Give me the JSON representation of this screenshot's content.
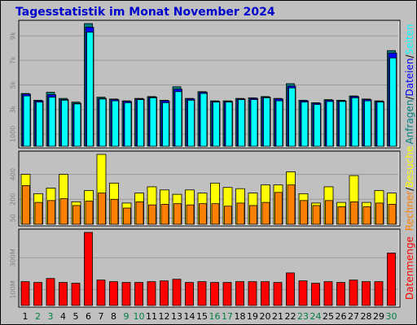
{
  "title": "Tagesstatistik im Monat November 2024",
  "colors": {
    "background": "#c0c0c0",
    "plot": "#c0c0c0",
    "grid": "#9a9a9a",
    "weekday": "#000000",
    "weekend": "#008040",
    "anfragen": "#008080",
    "dateien": "#0000ff",
    "seiten": "#00ffff",
    "besuche": "#ffff00",
    "rechner": "#ff8000",
    "datenmenge": "#ff0000",
    "title": "#0000cc"
  },
  "chart_data": [
    {
      "type": "bar",
      "ylabel_parts": [
        {
          "text": "Anfragen",
          "color_key": "anfragen"
        },
        {
          "text": "/",
          "color_key": "weekday"
        },
        {
          "text": "Dateien",
          "color_key": "dateien"
        },
        {
          "text": "/",
          "color_key": "weekday"
        },
        {
          "text": "Seiten",
          "color_key": "seiten"
        }
      ],
      "yticks": [
        "1000",
        "3k",
        "5k",
        "7k",
        "9k"
      ],
      "ytick_values": [
        1000,
        3000,
        5000,
        7000,
        9000
      ],
      "ylim": [
        0,
        10000
      ],
      "series": [
        {
          "name": "Anfragen",
          "color_key": "anfragen",
          "values": [
            4300,
            3750,
            4400,
            3900,
            3600,
            10000,
            4000,
            3850,
            3700,
            3900,
            4050,
            3750,
            4850,
            3900,
            4450,
            3700,
            3700,
            3900,
            3950,
            4050,
            3900,
            5100,
            3750,
            3550,
            3800,
            3750,
            4100,
            3850,
            3700,
            7800
          ]
        },
        {
          "name": "Dateien",
          "color_key": "dateien",
          "values": [
            4250,
            3700,
            4200,
            3800,
            3500,
            9700,
            3900,
            3800,
            3650,
            3850,
            4000,
            3700,
            4650,
            3850,
            4400,
            3650,
            3650,
            3850,
            3900,
            4000,
            3850,
            4900,
            3700,
            3500,
            3750,
            3700,
            4050,
            3800,
            3650,
            7600
          ]
        },
        {
          "name": "Seiten",
          "color_key": "seiten",
          "values": [
            4100,
            3600,
            4000,
            3750,
            3450,
            9300,
            3850,
            3700,
            3550,
            3800,
            3950,
            3550,
            4450,
            3750,
            4300,
            3600,
            3600,
            3800,
            3800,
            3950,
            3700,
            4750,
            3600,
            3400,
            3650,
            3650,
            3950,
            3700,
            3600,
            7200
          ]
        }
      ]
    },
    {
      "type": "bar",
      "ylabel_parts": [
        {
          "text": "Rechner",
          "color_key": "rechner"
        },
        {
          "text": "/",
          "color_key": "weekday"
        },
        {
          "text": "Besuche",
          "color_key": "besuche"
        }
      ],
      "yticks": [
        "50",
        "200",
        "400"
      ],
      "ytick_values": [
        50,
        200,
        400
      ],
      "ylim": [
        0,
        560
      ],
      "series": [
        {
          "name": "Besuche",
          "color_key": "besuche",
          "values": [
            400,
            245,
            290,
            400,
            180,
            270,
            560,
            330,
            170,
            250,
            300,
            275,
            240,
            275,
            250,
            330,
            295,
            285,
            250,
            315,
            315,
            420,
            245,
            170,
            300,
            175,
            390,
            175,
            270,
            250
          ]
        },
        {
          "name": "Rechner",
          "color_key": "rechner",
          "values": [
            310,
            175,
            190,
            205,
            150,
            185,
            250,
            200,
            130,
            180,
            155,
            160,
            165,
            155,
            165,
            165,
            145,
            170,
            150,
            175,
            255,
            315,
            190,
            150,
            190,
            140,
            180,
            140,
            170,
            160
          ]
        }
      ]
    },
    {
      "type": "bar",
      "ylabel_parts": [
        {
          "text": "Datenmenge",
          "color_key": "datenmenge"
        }
      ],
      "yticks": [
        "100M",
        "300M"
      ],
      "ytick_values": [
        100,
        300
      ],
      "ylim": [
        0,
        460
      ],
      "series": [
        {
          "name": "Datenmenge",
          "color_key": "datenmenge",
          "values": [
            150,
            145,
            170,
            145,
            140,
            460,
            160,
            150,
            145,
            145,
            150,
            155,
            165,
            145,
            150,
            145,
            145,
            150,
            150,
            150,
            145,
            205,
            155,
            140,
            150,
            145,
            160,
            150,
            150,
            330
          ]
        }
      ]
    }
  ],
  "days": [
    "1",
    "2",
    "3",
    "4",
    "5",
    "6",
    "7",
    "8",
    "9",
    "10",
    "11",
    "12",
    "13",
    "14",
    "15",
    "16",
    "17",
    "18",
    "19",
    "20",
    "21",
    "22",
    "23",
    "24",
    "25",
    "26",
    "27",
    "28",
    "29",
    "30"
  ],
  "weekend_days": [
    2,
    3,
    9,
    10,
    16,
    17,
    23,
    24,
    30
  ]
}
